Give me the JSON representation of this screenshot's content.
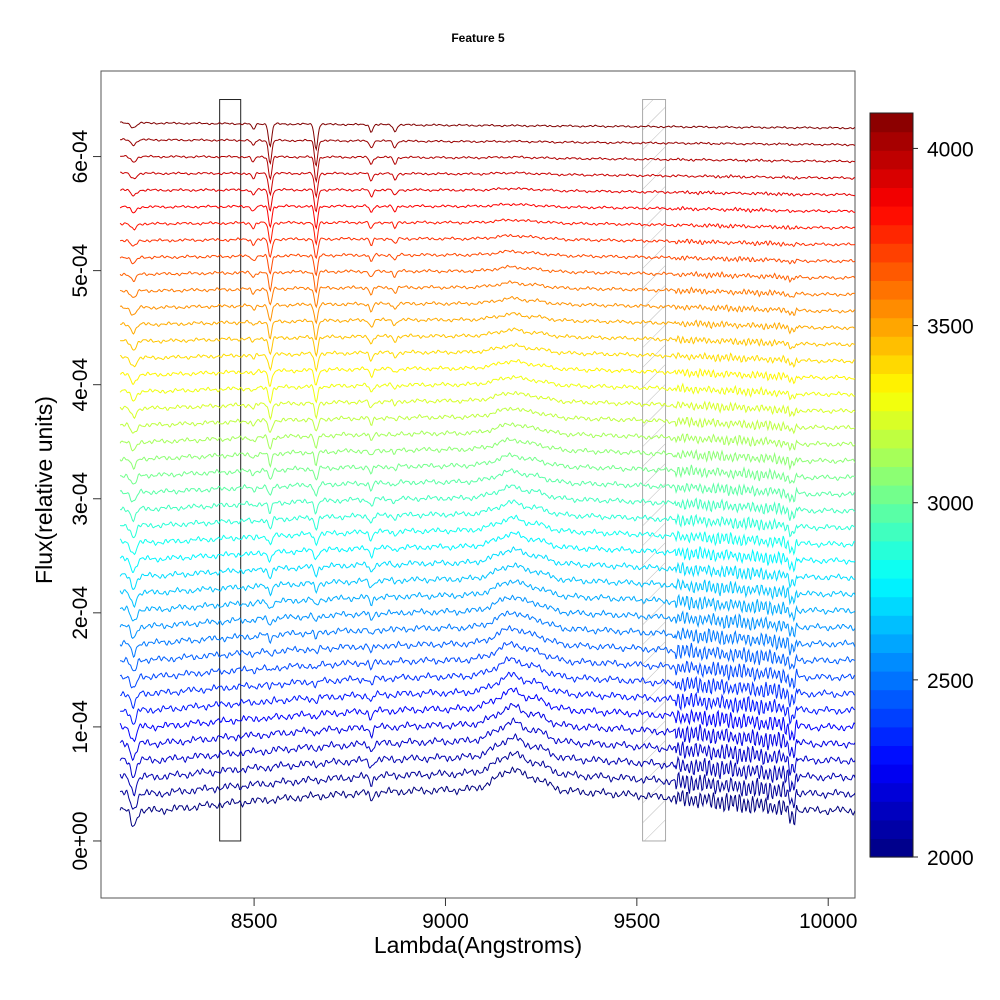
{
  "chart_data": {
    "type": "line",
    "title": "Feature 5",
    "xlabel": "Lambda(Angstroms)",
    "ylabel": "Flux(relative units)",
    "xlim": [
      8100,
      10070
    ],
    "ylim": [
      -5e-05,
      0.000675
    ],
    "x_ticks": [
      8500,
      9000,
      9500,
      10000
    ],
    "x_tick_labels": [
      "8500",
      "9000",
      "9500",
      "10000"
    ],
    "y_ticks": [
      0,
      0.0001,
      0.0002,
      0.0003,
      0.0004,
      0.0005,
      0.0006
    ],
    "y_tick_labels": [
      "0e+00",
      "1e-04",
      "2e-04",
      "3e-04",
      "4e-04",
      "5e-04",
      "6e-04"
    ],
    "x_range": [
      8150,
      10070
    ],
    "series_count": 42,
    "series_offset_step": 1.47e-05,
    "series_base_flux": [
      2.68e-05,
      0.0006232
    ],
    "series_temperature": [
      2000,
      4100
    ],
    "colorbar": {
      "min": 2000,
      "max": 4100,
      "ticks": [
        2000,
        2500,
        3000,
        3500,
        4000
      ],
      "tick_labels": [
        "2000",
        "2500",
        "3000",
        "3500",
        "4000"
      ],
      "colormap": "jet"
    },
    "feature_box": {
      "x_range": [
        8410,
        8465
      ],
      "y_range": [
        0,
        0.00065
      ],
      "style": "outline"
    },
    "excluded_band": {
      "x_range": [
        9515,
        9575
      ],
      "y_range": [
        0,
        0.00065
      ],
      "style": "hatched-gray"
    },
    "grid": false,
    "legend": "colorbar-right"
  }
}
